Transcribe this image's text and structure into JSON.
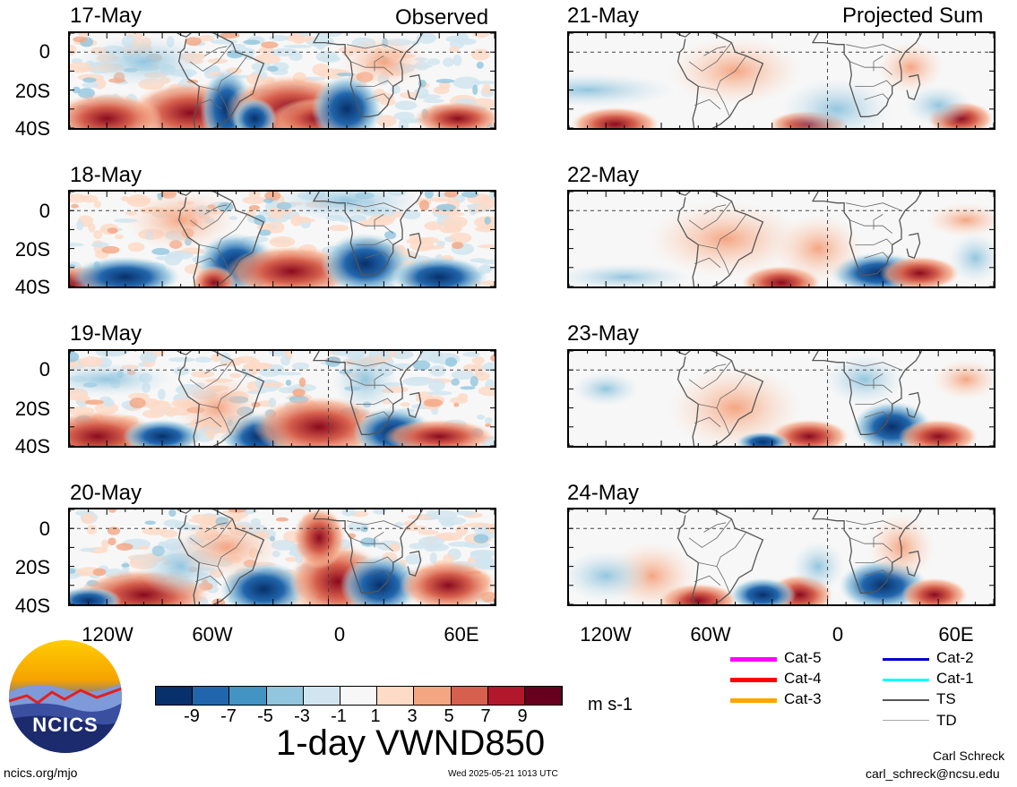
{
  "headers": {
    "left": "Observed",
    "right": "Projected Sum"
  },
  "observed_dates": [
    "17-May",
    "18-May",
    "19-May",
    "20-May"
  ],
  "projected_dates": [
    "21-May",
    "22-May",
    "23-May",
    "24-May"
  ],
  "lat_labels": [
    "0",
    "20S",
    "40S"
  ],
  "lon_labels": [
    "120W",
    "60W",
    "0",
    "60E"
  ],
  "colorbar": {
    "ticks": [
      "-9",
      "-7",
      "-5",
      "-3",
      "-1",
      "1",
      "3",
      "5",
      "7",
      "9"
    ],
    "colors": [
      "#08306b",
      "#2166ac",
      "#4393c3",
      "#92c5de",
      "#d1e5f0",
      "#f7f7f7",
      "#fddbc7",
      "#f4a582",
      "#d6604d",
      "#b2182b",
      "#67001f"
    ],
    "unit": "m s-1"
  },
  "title": "1-day VWND850",
  "legend": [
    {
      "label": "Cat-5",
      "color": "#ff00ff"
    },
    {
      "label": "Cat-4",
      "color": "#ff0000"
    },
    {
      "label": "Cat-3",
      "color": "#ffa500"
    },
    {
      "label": "Cat-2",
      "color": "#0000cc"
    },
    {
      "label": "Cat-1",
      "color": "#00ffff"
    },
    {
      "label": "TS",
      "color": "#555555"
    },
    {
      "label": "TD",
      "color": "#aaaaaa"
    }
  ],
  "logo_text": "NCICS",
  "footer": {
    "url": "ncics.org/mjo",
    "timestamp": "Wed 2025-05-21 1013 UTC",
    "author": "Carl Schreck",
    "email": "carl_schreck@ncsu.edu"
  }
}
